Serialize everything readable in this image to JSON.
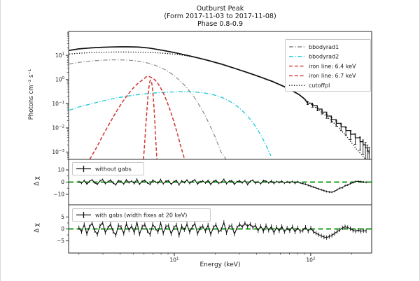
{
  "window": {
    "bg": "#ffffff",
    "edge_border": "#d8d8d8"
  },
  "chart_data": {
    "type": "line",
    "title_lines": [
      "Outburst Peak",
      "(Form 2017-11-03 to 2017-11-08)",
      "Phase 0.8-0.9"
    ],
    "xlabel": "Energy (keV)",
    "xscale": "log",
    "xlim": [
      1.68,
      280
    ],
    "x_tick_exponents": [
      1,
      2
    ],
    "grid": false,
    "colors": {
      "total": "#111111",
      "cutoffpl": "#111111",
      "bbodyrad1": "#8a8a8a",
      "bbodyrad2": "#1ec8d8",
      "iron": "#cf3630",
      "zero_line": "#18a018",
      "frame": "#2a2a2a",
      "text": "#1a1a1a",
      "legend_border": "#c8c8c8"
    },
    "panels": [
      {
        "name": "spectrum",
        "ylabel": "Photons cm⁻² s⁻¹",
        "yscale": "log",
        "ylim": [
          0.0005,
          97
        ],
        "y_tick_exponents": [
          1,
          0,
          -1,
          -2,
          -3
        ],
        "legend": [
          {
            "label": "bbodyrad1",
            "color_key": "bbodyrad1",
            "dash": "dashdot"
          },
          {
            "label": "bbodyrad2",
            "color_key": "bbodyrad2",
            "dash": "dashdot"
          },
          {
            "label": "iron line: 6.4 keV",
            "color_key": "iron",
            "dash": "dashed"
          },
          {
            "label": "iron line: 6.7 keV",
            "color_key": "iron",
            "dash": "dashed"
          },
          {
            "label": "cutoffpl",
            "color_key": "cutoffpl",
            "dash": "dotted"
          }
        ],
        "series": [
          {
            "name": "total-model",
            "color_key": "total",
            "dash": "solid",
            "width": 1.7,
            "x": [
              1.7,
              2,
              2.5,
              3,
              3.5,
              4,
              4.5,
              5,
              5.5,
              6,
              6.5,
              7,
              7.5,
              8,
              9,
              10,
              11,
              12,
              13,
              14,
              15,
              16,
              17,
              18,
              20,
              22,
              25,
              28,
              30,
              33,
              36,
              40,
              44,
              48,
              52,
              57,
              62,
              68,
              75,
              82,
              90,
              95
            ],
            "y": [
              16,
              18.5,
              20.5,
              21.5,
              22.2,
              22.5,
              22.5,
              22.3,
              21.8,
              21,
              20,
              18.8,
              17.6,
              16.5,
              14.6,
              13,
              11.6,
              10.4,
              9.4,
              8.5,
              7.8,
              7.1,
              6.5,
              6.0,
              5.1,
              4.4,
              3.5,
              2.85,
              2.5,
              2.1,
              1.78,
              1.45,
              1.2,
              1.0,
              0.85,
              0.68,
              0.55,
              0.43,
              0.32,
              0.24,
              0.16,
              0.105
            ]
          },
          {
            "name": "cutoffpl",
            "color_key": "cutoffpl",
            "dash": "dotted",
            "width": 1.3,
            "x": [
              1.7,
              2,
              2.5,
              3,
              3.5,
              4,
              5,
              6,
              7,
              8,
              9,
              10,
              11,
              12,
              13,
              14,
              15,
              16,
              17,
              18,
              20,
              22,
              25,
              28,
              30,
              33,
              36,
              40,
              44,
              48,
              52,
              57,
              62,
              68,
              75,
              82,
              90,
              100,
              110,
              125,
              140,
              160,
              185,
              215,
              250,
              268
            ],
            "y": [
              11.3,
              12.2,
              13.0,
              13.4,
              13.6,
              13.7,
              13.6,
              13.3,
              12.9,
              12.4,
              11.8,
              11.2,
              10.5,
              9.8,
              9.1,
              8.4,
              7.7,
              7.0,
              6.4,
              5.9,
              5.0,
              4.3,
              3.4,
              2.8,
              2.45,
              2.05,
              1.74,
              1.42,
              1.17,
              0.98,
              0.83,
              0.66,
              0.54,
              0.42,
              0.31,
              0.235,
              0.155,
              0.1,
              0.066,
              0.037,
              0.021,
              0.0105,
              0.0042,
              0.0014,
              0.00055,
              0.0004
            ]
          },
          {
            "name": "bbodyrad1",
            "color_key": "bbodyrad1",
            "dash": "dashdot",
            "width": 1.2,
            "x": [
              1.7,
              2,
              2.5,
              3,
              3.5,
              4,
              4.5,
              5,
              5.5,
              6,
              6.5,
              7,
              7.5,
              8,
              8.5,
              9,
              9.5,
              10,
              11,
              12,
              13,
              14,
              15,
              16,
              17,
              18,
              19,
              20,
              22,
              24,
              26
            ],
            "y": [
              4.4,
              5.1,
              5.9,
              6.3,
              6.5,
              6.5,
              6.35,
              6.1,
              5.7,
              5.2,
              4.7,
              4.15,
              3.6,
              3.1,
              2.6,
              2.15,
              1.75,
              1.42,
              0.9,
              0.55,
              0.32,
              0.185,
              0.1,
              0.055,
              0.029,
              0.015,
              0.0078,
              0.004,
              0.001,
              0.0005,
              0.0004
            ]
          },
          {
            "name": "bbodyrad2",
            "color_key": "bbodyrad2",
            "dash": "dashdot",
            "width": 1.3,
            "x": [
              1.7,
              2,
              2.5,
              3,
              3.5,
              4,
              5,
              6,
              7,
              8,
              9,
              10,
              11,
              12,
              13,
              14,
              15,
              16,
              17,
              18,
              20,
              22,
              24,
              26,
              28,
              30,
              33,
              36,
              39,
              42,
              45,
              48,
              51
            ],
            "y": [
              0.054,
              0.073,
              0.102,
              0.13,
              0.158,
              0.183,
              0.224,
              0.253,
              0.274,
              0.289,
              0.3,
              0.307,
              0.311,
              0.312,
              0.31,
              0.305,
              0.297,
              0.286,
              0.273,
              0.258,
              0.224,
              0.188,
              0.152,
              0.119,
              0.09,
              0.066,
              0.04,
              0.023,
              0.0125,
              0.0065,
              0.0032,
              0.0015,
              0.0007
            ]
          },
          {
            "name": "iron-line-6-4",
            "color_key": "iron",
            "dash": "dashed",
            "width": 1.5,
            "x": [
              2.4,
              2.7,
              3.0,
              3.3,
              3.6,
              3.9,
              4.2,
              4.5,
              4.8,
              5.1,
              5.4,
              5.7,
              6.0,
              6.2,
              6.4,
              6.6,
              6.9,
              7.2,
              7.5,
              7.8,
              8.1,
              8.5,
              8.9,
              9.4,
              9.9,
              10.5,
              11.1,
              11.8,
              12.5
            ],
            "y": [
              0.0005,
              0.0016,
              0.005,
              0.013,
              0.031,
              0.066,
              0.125,
              0.215,
              0.34,
              0.5,
              0.68,
              0.87,
              1.05,
              1.28,
              1.35,
              1.3,
              1.17,
              0.97,
              0.75,
              0.54,
              0.37,
              0.21,
              0.11,
              0.048,
              0.019,
              0.0063,
              0.0019,
              0.0006,
              0.0004
            ]
          },
          {
            "name": "iron-line-6-7",
            "color_key": "iron",
            "dash": "dashed",
            "width": 1.5,
            "x": [
              5.95,
              6.1,
              6.2,
              6.3,
              6.4,
              6.5,
              6.55,
              6.6,
              6.65,
              6.7,
              6.75,
              6.8,
              6.85,
              6.9,
              7.0,
              7.1,
              7.2,
              7.3,
              7.45
            ],
            "y": [
              0.0005,
              0.0035,
              0.015,
              0.055,
              0.17,
              0.42,
              0.6,
              0.75,
              0.88,
              0.93,
              0.9,
              0.8,
              0.65,
              0.47,
              0.21,
              0.07,
              0.018,
              0.004,
              0.0005
            ]
          }
        ],
        "data_steps": {
          "x": [
            95,
            103,
            112,
            121,
            131,
            142,
            154,
            167,
            181,
            196,
            212,
            230,
            242,
            252,
            260,
            268
          ],
          "y": [
            0.105,
            0.082,
            0.06,
            0.045,
            0.031,
            0.022,
            0.0155,
            0.011,
            0.0078,
            0.0055,
            0.0039,
            0.0027,
            0.002,
            0.0015,
            0.0011,
            0.00085
          ],
          "yerr": [
            0.013,
            0.011,
            0.009,
            0.0075,
            0.006,
            0.005,
            0.004,
            0.0033,
            0.0027,
            0.0022,
            0.0018,
            0.0015,
            0.0012,
            0.001,
            0.00085,
            0.0007
          ]
        }
      },
      {
        "name": "residuals-without-gabs",
        "ylabel": "Δ χ",
        "ylim": [
          -18.6,
          18.6
        ],
        "yticks": [
          10,
          0,
          -10
        ],
        "yticks_minor": [
          5,
          -5
        ],
        "legend_label": "without gabs",
        "residuals": {
          "e_min": 2,
          "e_max": 255,
          "yerr": 0.8,
          "values": [
            0.4,
            -0.9,
            1.3,
            -1.6,
            0.6,
            1.9,
            -0.5,
            -1.8,
            1.0,
            2.1,
            -1.2,
            0.3,
            1.6,
            -0.8,
            -2.1,
            1.2,
            0.5,
            -1.5,
            1.8,
            -0.4,
            0.9,
            -1.2,
            2.3,
            -1.7,
            0.7,
            1.4,
            -0.6,
            -1.9,
            1.5,
            0.2,
            -1.0,
            2.0,
            -1.4,
            0.8,
            1.1,
            -1.7,
            0.4,
            1.3,
            -2.2,
            1.0,
            -0.3,
            1.6,
            -1.1,
            0.6,
            1.9,
            -1.6,
            0.3,
            0.9,
            -0.7,
            1.3,
            -1.9,
            0.5,
            1.4,
            -1.0,
            -0.2,
            2.2,
            -1.3,
            0.7,
            1.1,
            -1.8,
            0.4,
            1.0,
            -0.5,
            1.2,
            -2.0,
            0.6,
            1.5,
            -0.9,
            0.3,
            -1.4,
            1.2,
            0.8,
            -0.6,
            1.0,
            -1.1,
            0.5,
            -0.3,
            0.8,
            -0.8,
            0.2,
            -0.5,
            0.6,
            -1.0,
            0.3,
            -0.7,
            -1.2,
            -1.8,
            -2.6,
            -3.3,
            -4.1,
            -4.8,
            -5.6,
            -6.3,
            -7.0,
            -7.7,
            -8.1,
            -8.3,
            -7.6,
            -6.2,
            -4.9,
            -4.6,
            -2.9,
            -2.4,
            -1.2,
            -0.4,
            0.5,
            0.7,
            0.4,
            0.1,
            -0.2
          ]
        }
      },
      {
        "name": "residuals-with-gabs",
        "ylabel": "Δ χ",
        "ylim": [
          -10.1,
          10.1
        ],
        "yticks": [
          5,
          0,
          -5
        ],
        "yticks_minor": [
          2.5,
          -2.5
        ],
        "legend_label": "with gabs (width fixes at 20 keV)",
        "residuals": {
          "e_min": 2,
          "e_max": 255,
          "yerr": 0.9,
          "values": [
            0.5,
            -1.2,
            1.8,
            -2.1,
            0.9,
            2.4,
            -0.7,
            -2.3,
            1.3,
            2.6,
            -1.5,
            0.4,
            2.0,
            -1.1,
            -2.6,
            1.5,
            0.7,
            -1.9,
            2.2,
            -0.5,
            1.2,
            -1.6,
            2.8,
            -2.2,
            0.9,
            1.8,
            -0.8,
            -2.4,
            1.9,
            0.3,
            -1.3,
            2.5,
            -1.8,
            1.0,
            1.4,
            -2.1,
            0.5,
            1.7,
            -2.7,
            1.2,
            -0.4,
            2.0,
            -1.4,
            0.8,
            2.3,
            -2.0,
            0.4,
            1.1,
            -0.9,
            1.6,
            -2.3,
            0.6,
            1.8,
            -1.2,
            -0.3,
            2.7,
            -1.6,
            0.9,
            1.4,
            -2.2,
            0.5,
            1.9,
            0.8,
            2.4,
            1.1,
            2.0,
            0.6,
            1.5,
            -0.8,
            1.2,
            -1.0,
            1.4,
            -0.6,
            1.0,
            -1.6,
            0.7,
            -0.9,
            1.1,
            -1.2,
            0.4,
            -0.8,
            0.9,
            -1.3,
            0.5,
            -1.0,
            -0.6,
            0.7,
            -0.9,
            0.4,
            -1.2,
            -1.8,
            -2.4,
            -2.9,
            -3.4,
            -3.6,
            -3.2,
            -2.7,
            -1.9,
            -1.1,
            -0.4,
            0.5,
            0.9,
            0.6,
            0.1,
            -0.6,
            -0.9,
            -0.5,
            -1.0,
            -0.7,
            -0.8
          ]
        }
      }
    ]
  }
}
